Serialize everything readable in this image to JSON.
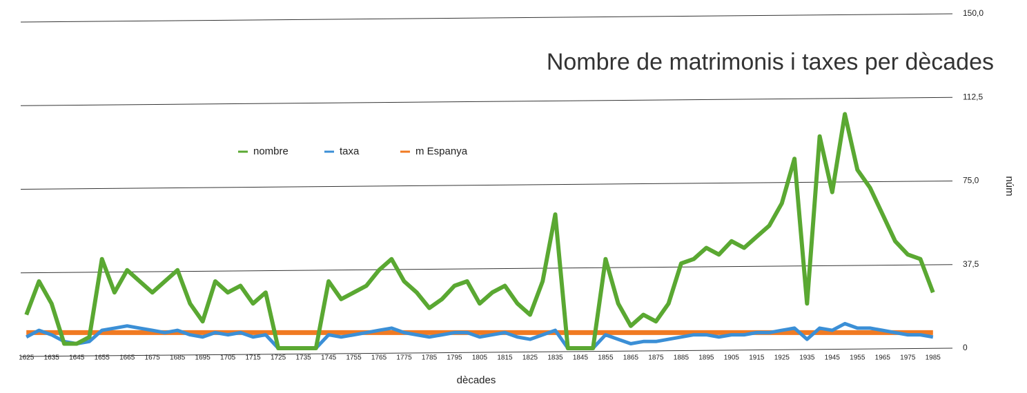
{
  "chart_data": {
    "type": "line",
    "title": "Nombre de matrimonis i taxes per dècades",
    "x_label": "dècades",
    "y_label": "núm",
    "x": [
      1625,
      1630,
      1635,
      1640,
      1645,
      1650,
      1655,
      1660,
      1665,
      1670,
      1675,
      1680,
      1685,
      1690,
      1695,
      1700,
      1705,
      1710,
      1715,
      1720,
      1725,
      1730,
      1735,
      1740,
      1745,
      1750,
      1755,
      1760,
      1765,
      1770,
      1775,
      1780,
      1785,
      1790,
      1795,
      1800,
      1805,
      1810,
      1815,
      1820,
      1825,
      1830,
      1835,
      1840,
      1845,
      1850,
      1855,
      1860,
      1865,
      1870,
      1875,
      1880,
      1885,
      1890,
      1895,
      1900,
      1905,
      1910,
      1915,
      1920,
      1925,
      1930,
      1935,
      1940,
      1945,
      1950,
      1955,
      1960,
      1965,
      1970,
      1975,
      1980,
      1985
    ],
    "series": [
      {
        "name": "nombre",
        "color": "#5aa832",
        "values": [
          15,
          30,
          20,
          2,
          2,
          5,
          40,
          25,
          35,
          30,
          25,
          30,
          35,
          20,
          12,
          30,
          25,
          28,
          20,
          25,
          0,
          0,
          0,
          0,
          30,
          22,
          25,
          28,
          35,
          40,
          30,
          25,
          18,
          22,
          28,
          30,
          20,
          25,
          28,
          20,
          15,
          30,
          60,
          0,
          0,
          0,
          40,
          20,
          10,
          15,
          12,
          20,
          38,
          40,
          45,
          42,
          48,
          45,
          50,
          55,
          65,
          85,
          20,
          95,
          70,
          105,
          80,
          72,
          60,
          48,
          42,
          40,
          25
        ]
      },
      {
        "name": "taxa",
        "color": "#3b8fd6",
        "values": [
          5,
          8,
          6,
          3,
          2,
          3,
          8,
          9,
          10,
          9,
          8,
          7,
          8,
          6,
          5,
          7,
          6,
          7,
          5,
          6,
          0,
          0,
          0,
          0,
          6,
          5,
          6,
          7,
          8,
          9,
          7,
          6,
          5,
          6,
          7,
          7,
          5,
          6,
          7,
          5,
          4,
          6,
          8,
          0,
          0,
          0,
          6,
          4,
          2,
          3,
          3,
          4,
          5,
          6,
          6,
          5,
          6,
          6,
          7,
          7,
          8,
          9,
          4,
          9,
          8,
          11,
          9,
          9,
          8,
          7,
          6,
          6,
          5
        ]
      },
      {
        "name": "m Espanya",
        "color": "#f07a22",
        "values": [
          7,
          7,
          7,
          7,
          7,
          7,
          7,
          7,
          7,
          7,
          7,
          7,
          7,
          7,
          7,
          7,
          7,
          7,
          7,
          7,
          7,
          7,
          7,
          7,
          7,
          7,
          7,
          7,
          7,
          7,
          7,
          7,
          7,
          7,
          7,
          7,
          7,
          7,
          7,
          7,
          7,
          7,
          7,
          7,
          7,
          7,
          7,
          7,
          7,
          7,
          7,
          7,
          7,
          7,
          7,
          7,
          7,
          7,
          7,
          7,
          7,
          7,
          7,
          7,
          7,
          7,
          7,
          7,
          7,
          7,
          7,
          7,
          7
        ]
      }
    ],
    "xlim": [
      1620,
      1990
    ],
    "xticks": [
      1625,
      1635,
      1645,
      1655,
      1665,
      1675,
      1685,
      1695,
      1705,
      1715,
      1725,
      1735,
      1745,
      1755,
      1765,
      1775,
      1785,
      1795,
      1805,
      1815,
      1825,
      1835,
      1845,
      1855,
      1865,
      1875,
      1885,
      1895,
      1905,
      1915,
      1925,
      1935,
      1945,
      1955,
      1965,
      1975,
      1985
    ],
    "ylim": [
      0,
      150
    ],
    "yticks": [
      0,
      {
        "value": 37.5,
        "label": "37,5"
      },
      {
        "value": 75,
        "label": "75,0"
      },
      {
        "value": 112.5,
        "label": "112,5"
      },
      {
        "value": 150,
        "label": "150,0"
      }
    ],
    "grid": true
  }
}
